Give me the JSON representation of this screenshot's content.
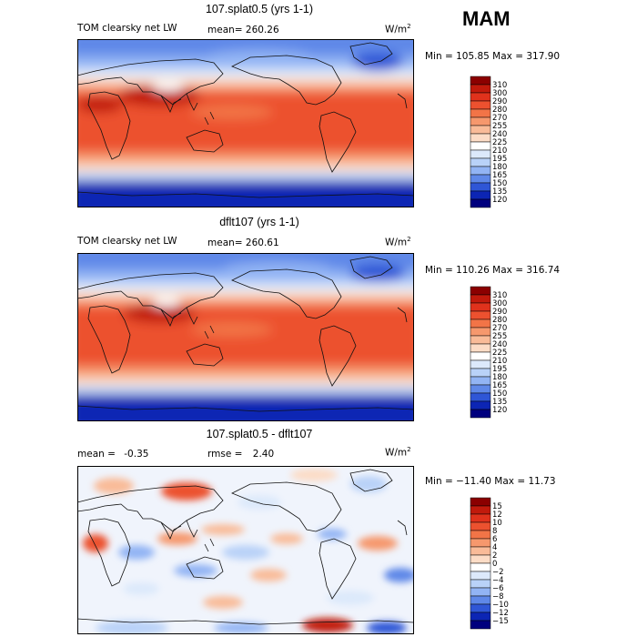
{
  "season": "MAM",
  "panels": [
    {
      "title": "107.splat0.5 (yrs 1-1)",
      "left_label": "TOM clearsky net LW",
      "mid_label": "mean=",
      "mid_value": "260.26",
      "units": "W/m",
      "units_exp": "2",
      "range_label": "Min = 105.85 Max = 317.90"
    },
    {
      "title": "dflt107 (yrs 1-1)",
      "left_label": "TOM clearsky net LW",
      "mid_label": "mean=",
      "mid_value": "260.61",
      "units": "W/m",
      "units_exp": "2",
      "range_label": "Min = 110.26 Max = 316.74"
    },
    {
      "title": "107.splat0.5 - dflt107",
      "left_label": "mean =",
      "left_value": "-0.35",
      "mid_label": "rmse =",
      "mid_value": "2.40",
      "units": "W/m",
      "units_exp": "2",
      "range_label": "Min = −11.40 Max =  11.73"
    }
  ],
  "chart_data": [
    {
      "type": "heatmap",
      "title": "107.splat0.5 (yrs 1-1)",
      "variable": "TOM clearsky net LW",
      "mean": 260.26,
      "min": 105.85,
      "max": 317.9,
      "units": "W/m2",
      "colorbar": {
        "levels": [
          "310",
          "300",
          "290",
          "280",
          "270",
          "255",
          "240",
          "225",
          "210",
          "195",
          "180",
          "165",
          "150",
          "135",
          "120"
        ],
        "colors": [
          "#8b0000",
          "#c11a0c",
          "#e0321c",
          "#ec512f",
          "#f27447",
          "#f6986d",
          "#f9bb98",
          "#fcdcc6",
          "#ffffff",
          "#dce9fb",
          "#b9d2f8",
          "#92b4f4",
          "#5f88e8",
          "#2f56d6",
          "#0c25b4",
          "#00007e"
        ]
      }
    },
    {
      "type": "heatmap",
      "title": "dflt107 (yrs 1-1)",
      "variable": "TOM clearsky net LW",
      "mean": 260.61,
      "min": 110.26,
      "max": 316.74,
      "units": "W/m2",
      "colorbar": {
        "levels": [
          "310",
          "300",
          "290",
          "280",
          "270",
          "255",
          "240",
          "225",
          "210",
          "195",
          "180",
          "165",
          "150",
          "135",
          "120"
        ],
        "colors": [
          "#8b0000",
          "#c11a0c",
          "#e0321c",
          "#ec512f",
          "#f27447",
          "#f6986d",
          "#f9bb98",
          "#fcdcc6",
          "#ffffff",
          "#dce9fb",
          "#b9d2f8",
          "#92b4f4",
          "#5f88e8",
          "#2f56d6",
          "#0c25b4",
          "#00007e"
        ]
      }
    },
    {
      "type": "heatmap",
      "title": "107.splat0.5 - dflt107",
      "mean": -0.35,
      "rmse": 2.4,
      "min": -11.4,
      "max": 11.73,
      "units": "W/m2",
      "colorbar": {
        "levels": [
          "15",
          "12",
          "10",
          "8",
          "6",
          "4",
          "2",
          "0",
          "−2",
          "−4",
          "−6",
          "−8",
          "−10",
          "−12",
          "−15"
        ],
        "colors": [
          "#8b0000",
          "#c11a0c",
          "#e0321c",
          "#ec512f",
          "#f27447",
          "#f6986d",
          "#f9bb98",
          "#fcdcc6",
          "#ffffff",
          "#dce9fb",
          "#b9d2f8",
          "#92b4f4",
          "#5f88e8",
          "#2f56d6",
          "#0c25b4",
          "#00007e"
        ]
      }
    }
  ]
}
